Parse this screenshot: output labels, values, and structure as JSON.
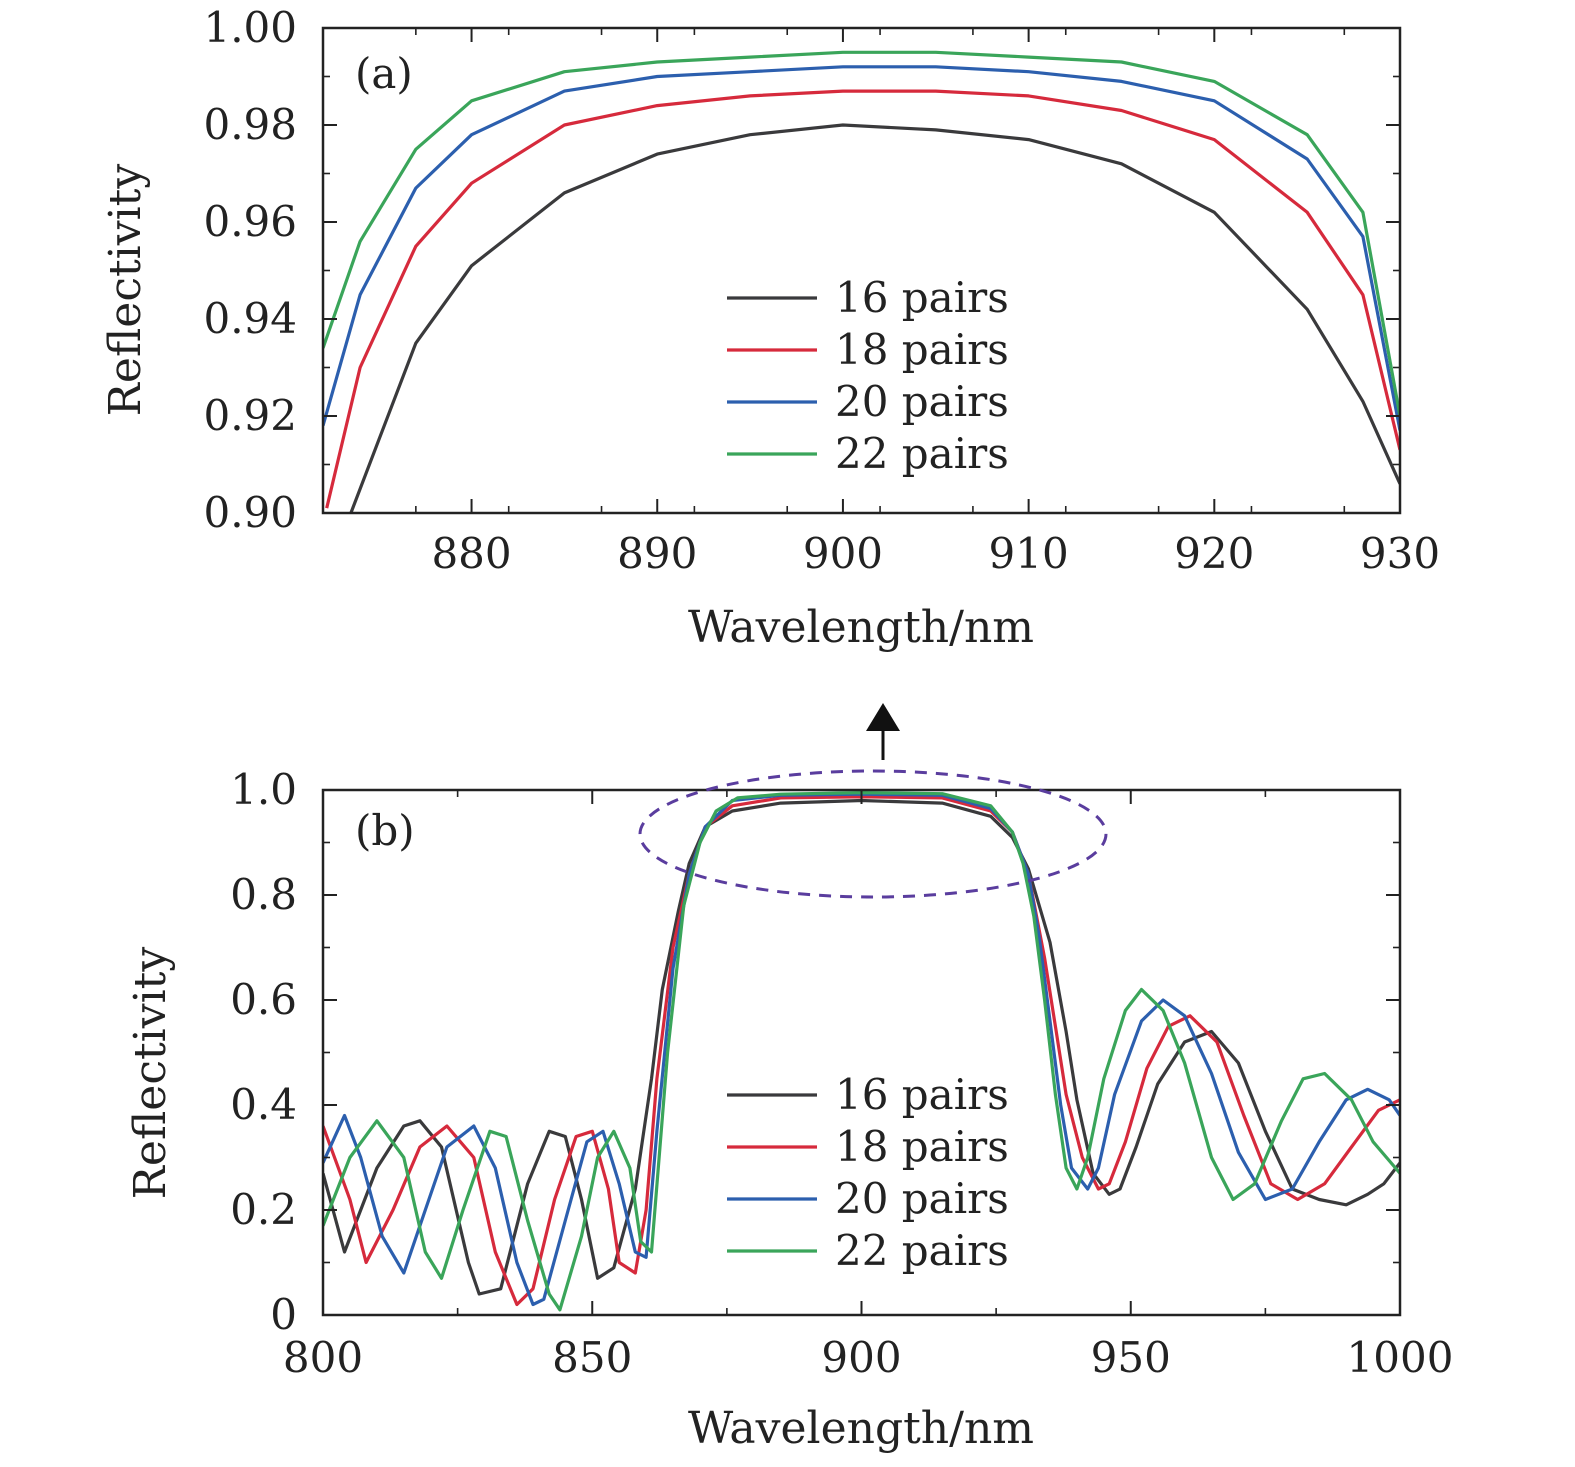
{
  "colors": {
    "16 pairs": "#3a3a3c",
    "18 pairs": "#d62a3c",
    "20 pairs": "#2c5fae",
    "22 pairs": "#3aa55a",
    "ellipse": "#5a3d9e",
    "axis": "#222222"
  },
  "chart_data": [
    {
      "type": "line",
      "panel": "(a)",
      "xlabel": "Wavelength/nm",
      "ylabel": "Reflectivity",
      "xlim": [
        872,
        930
      ],
      "ylim": [
        0.9,
        1.0
      ],
      "xticks": [
        880,
        890,
        900,
        910,
        920,
        930
      ],
      "xtick_labels": [
        "880",
        "890",
        "900",
        "910",
        "920",
        "930"
      ],
      "yticks": [
        0.9,
        0.92,
        0.94,
        0.96,
        0.98,
        1.0
      ],
      "ytick_labels": [
        "0.90",
        "0.92",
        "0.94",
        "0.96",
        "0.98",
        "1.00"
      ],
      "legend": "center",
      "grid": false,
      "series": [
        {
          "name": "16 pairs",
          "x": [
            873.5,
            875,
            877,
            880,
            885,
            890,
            895,
            900,
            905,
            910,
            915,
            920,
            925,
            928,
            930
          ],
          "y": [
            0.9,
            0.915,
            0.935,
            0.951,
            0.966,
            0.974,
            0.978,
            0.98,
            0.979,
            0.977,
            0.972,
            0.962,
            0.942,
            0.923,
            0.906
          ]
        },
        {
          "name": "18 pairs",
          "x": [
            872.2,
            874,
            877,
            880,
            885,
            890,
            895,
            900,
            905,
            910,
            915,
            920,
            925,
            928,
            930
          ],
          "y": [
            0.901,
            0.93,
            0.955,
            0.968,
            0.98,
            0.984,
            0.986,
            0.987,
            0.987,
            0.986,
            0.983,
            0.977,
            0.962,
            0.945,
            0.913
          ]
        },
        {
          "name": "20 pairs",
          "x": [
            872,
            874,
            877,
            880,
            885,
            890,
            895,
            900,
            905,
            910,
            915,
            920,
            925,
            928,
            930
          ],
          "y": [
            0.918,
            0.945,
            0.967,
            0.978,
            0.987,
            0.99,
            0.991,
            0.992,
            0.992,
            0.991,
            0.989,
            0.985,
            0.973,
            0.957,
            0.917
          ]
        },
        {
          "name": "22 pairs",
          "x": [
            872,
            874,
            877,
            880,
            885,
            890,
            895,
            900,
            905,
            910,
            915,
            920,
            925,
            928,
            930
          ],
          "y": [
            0.934,
            0.956,
            0.975,
            0.985,
            0.991,
            0.993,
            0.994,
            0.995,
            0.995,
            0.994,
            0.993,
            0.989,
            0.978,
            0.962,
            0.92
          ]
        }
      ]
    },
    {
      "type": "line",
      "panel": "(b)",
      "xlabel": "Wavelength/nm",
      "ylabel": "Reflectivity",
      "xlim": [
        800,
        1000
      ],
      "ylim": [
        0,
        1.0
      ],
      "xticks": [
        800,
        850,
        900,
        950,
        1000
      ],
      "xtick_labels": [
        "800",
        "850",
        "900",
        "950",
        "1000"
      ],
      "yticks": [
        0,
        0.2,
        0.4,
        0.6,
        0.8,
        1.0
      ],
      "ytick_labels": [
        "0",
        "0.2",
        "0.4",
        "0.6",
        "0.8",
        "1.0"
      ],
      "legend": "lower center",
      "grid": false,
      "series": [
        {
          "name": "16 pairs",
          "x": [
            800,
            804,
            810,
            815,
            818,
            822,
            827,
            829,
            833,
            838,
            842,
            845,
            848,
            851,
            854,
            858,
            861,
            863,
            866,
            868,
            871,
            876,
            885,
            900,
            915,
            924,
            928,
            931,
            935,
            938,
            940,
            943,
            946,
            948,
            951,
            955,
            960,
            965,
            970,
            975,
            980,
            985,
            990,
            994,
            997,
            1000
          ],
          "y": [
            0.27,
            0.12,
            0.28,
            0.36,
            0.37,
            0.32,
            0.1,
            0.04,
            0.05,
            0.25,
            0.35,
            0.34,
            0.22,
            0.07,
            0.09,
            0.24,
            0.45,
            0.62,
            0.77,
            0.86,
            0.93,
            0.96,
            0.975,
            0.98,
            0.975,
            0.95,
            0.91,
            0.85,
            0.71,
            0.54,
            0.41,
            0.27,
            0.23,
            0.24,
            0.32,
            0.44,
            0.52,
            0.54,
            0.48,
            0.35,
            0.24,
            0.22,
            0.21,
            0.23,
            0.25,
            0.29
          ]
        },
        {
          "name": "18 pairs",
          "x": [
            800,
            805,
            808,
            813,
            818,
            823,
            828,
            832,
            836,
            839,
            843,
            847,
            850,
            853,
            855,
            858,
            860,
            862,
            865,
            868,
            871,
            876,
            885,
            900,
            915,
            924,
            928,
            931,
            934,
            936,
            938,
            941,
            944,
            946,
            949,
            953,
            957,
            961,
            966,
            971,
            976,
            981,
            986,
            991,
            996,
            1000
          ],
          "y": [
            0.36,
            0.22,
            0.1,
            0.2,
            0.32,
            0.36,
            0.3,
            0.12,
            0.02,
            0.05,
            0.22,
            0.34,
            0.35,
            0.24,
            0.1,
            0.08,
            0.2,
            0.45,
            0.7,
            0.84,
            0.93,
            0.97,
            0.985,
            0.987,
            0.985,
            0.96,
            0.92,
            0.84,
            0.68,
            0.55,
            0.42,
            0.3,
            0.24,
            0.25,
            0.33,
            0.47,
            0.55,
            0.57,
            0.52,
            0.38,
            0.25,
            0.22,
            0.25,
            0.32,
            0.39,
            0.41
          ]
        },
        {
          "name": "20 pairs",
          "x": [
            800,
            804,
            807,
            811,
            815,
            819,
            823,
            828,
            832,
            836,
            839,
            841,
            845,
            849,
            852,
            855,
            858,
            860,
            862,
            865,
            868,
            871,
            876,
            885,
            900,
            915,
            924,
            928,
            931,
            933,
            935,
            937,
            939,
            942,
            944,
            947,
            952,
            956,
            960,
            965,
            970,
            975,
            980,
            985,
            990,
            994,
            998,
            1000
          ],
          "y": [
            0.29,
            0.38,
            0.3,
            0.15,
            0.08,
            0.2,
            0.32,
            0.36,
            0.28,
            0.1,
            0.02,
            0.03,
            0.18,
            0.33,
            0.35,
            0.25,
            0.12,
            0.11,
            0.35,
            0.66,
            0.84,
            0.93,
            0.98,
            0.99,
            0.992,
            0.99,
            0.965,
            0.92,
            0.84,
            0.72,
            0.56,
            0.4,
            0.28,
            0.24,
            0.28,
            0.42,
            0.56,
            0.6,
            0.57,
            0.46,
            0.31,
            0.22,
            0.24,
            0.33,
            0.41,
            0.43,
            0.41,
            0.38
          ]
        },
        {
          "name": "22 pairs",
          "x": [
            800,
            805,
            810,
            815,
            819,
            822,
            826,
            831,
            834,
            838,
            842,
            844,
            848,
            851,
            854,
            857,
            859,
            861,
            864,
            867,
            870,
            873,
            877,
            885,
            900,
            915,
            924,
            928,
            930,
            932,
            934,
            936,
            938,
            940,
            942,
            945,
            949,
            952,
            956,
            960,
            965,
            969,
            973,
            978,
            982,
            986,
            991,
            995,
            1000
          ],
          "y": [
            0.17,
            0.3,
            0.37,
            0.3,
            0.12,
            0.07,
            0.2,
            0.35,
            0.34,
            0.18,
            0.04,
            0.01,
            0.15,
            0.3,
            0.35,
            0.28,
            0.14,
            0.12,
            0.5,
            0.78,
            0.9,
            0.96,
            0.985,
            0.992,
            0.995,
            0.993,
            0.97,
            0.92,
            0.86,
            0.76,
            0.6,
            0.42,
            0.28,
            0.24,
            0.3,
            0.45,
            0.58,
            0.62,
            0.58,
            0.48,
            0.3,
            0.22,
            0.25,
            0.37,
            0.45,
            0.46,
            0.41,
            0.33,
            0.27
          ]
        }
      ]
    }
  ]
}
